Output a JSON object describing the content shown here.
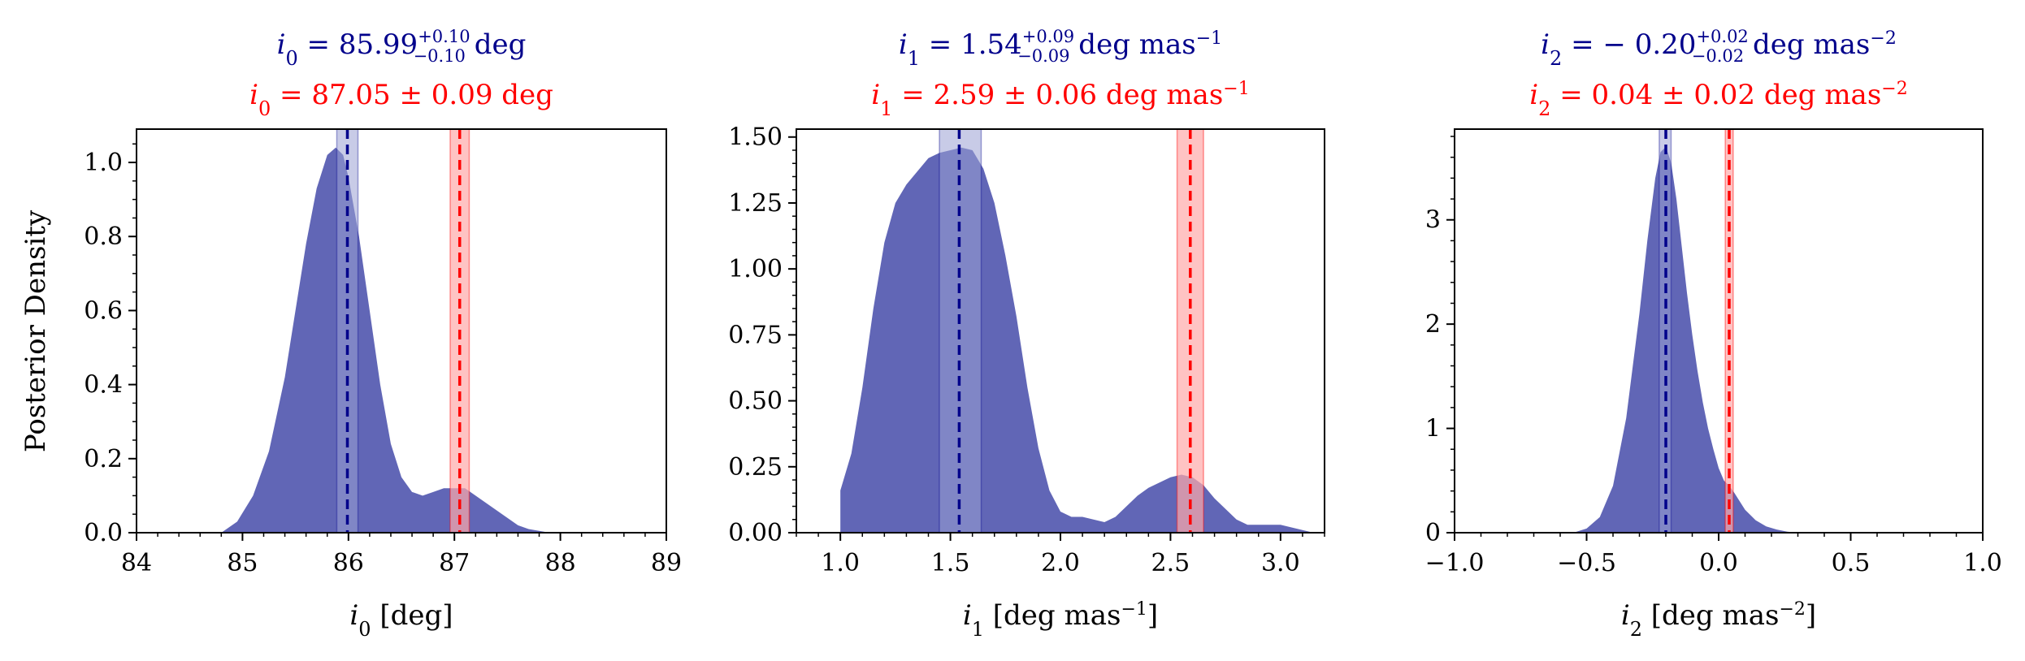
{
  "figure": {
    "ylabel": "Posterior Density",
    "colors": {
      "fill": "#6166b6",
      "blue": "#00008b",
      "blue_band": "#9aa0d4",
      "red": "#ff0000",
      "red_band": "#ffaaaa"
    }
  },
  "chart_data": [
    {
      "type": "area",
      "title_blue": {
        "var": "i",
        "sub": "0",
        "rest": " = 85.99",
        "sup": "+0.10",
        "subv": "−0.10",
        "unit": " deg"
      },
      "title_red": {
        "var": "i",
        "sub": "0",
        "rest": " = 87.05 ± 0.09 deg"
      },
      "xlabel": {
        "var": "i",
        "sub": "0",
        "rest": " [deg]",
        "sup": ""
      },
      "xlim": [
        84,
        89
      ],
      "ylim": [
        0,
        1.09
      ],
      "xticks": [
        84,
        85,
        86,
        87,
        88,
        89
      ],
      "yticks": [
        0.0,
        0.2,
        0.4,
        0.6,
        0.8,
        1.0
      ],
      "xtick_labels": [
        "84",
        "85",
        "86",
        "87",
        "88",
        "89"
      ],
      "ytick_labels": [
        "0.0",
        "0.2",
        "0.4",
        "0.6",
        "0.8",
        "1.0"
      ],
      "x_minor_step": 0.2,
      "y_minor_step": 0.05,
      "blue_fit": {
        "value": 85.99,
        "band": [
          85.89,
          86.09
        ]
      },
      "red_fit": {
        "value": 87.05,
        "band": [
          86.96,
          87.14
        ]
      },
      "series": {
        "x": [
          84.8,
          84.95,
          85.1,
          85.25,
          85.4,
          85.5,
          85.6,
          85.7,
          85.8,
          85.88,
          85.95,
          86.0,
          86.05,
          86.1,
          86.2,
          86.3,
          86.4,
          86.5,
          86.6,
          86.7,
          86.8,
          86.9,
          87.0,
          87.1,
          87.2,
          87.3,
          87.4,
          87.5,
          87.6,
          87.7,
          87.8,
          87.9
        ],
        "y": [
          0.0,
          0.03,
          0.1,
          0.22,
          0.42,
          0.6,
          0.78,
          0.93,
          1.02,
          1.04,
          1.02,
          0.96,
          0.88,
          0.8,
          0.6,
          0.4,
          0.24,
          0.15,
          0.11,
          0.1,
          0.11,
          0.12,
          0.12,
          0.12,
          0.1,
          0.08,
          0.06,
          0.04,
          0.02,
          0.01,
          0.005,
          0.0
        ]
      }
    },
    {
      "type": "area",
      "title_blue": {
        "var": "i",
        "sub": "1",
        "rest": " = 1.54",
        "sup": "+0.09",
        "subv": "−0.09",
        "unit": " deg mas",
        "unit_sup": "−1"
      },
      "title_red": {
        "var": "i",
        "sub": "1",
        "rest": " = 2.59 ± 0.06 deg mas",
        "unit_sup": "−1"
      },
      "xlabel": {
        "var": "i",
        "sub": "1",
        "rest": " [deg mas",
        "sup": "−1",
        "close": "]"
      },
      "xlim": [
        0.8,
        3.2
      ],
      "ylim": [
        0,
        1.53
      ],
      "xticks": [
        1.0,
        1.5,
        2.0,
        2.5,
        3.0
      ],
      "yticks": [
        0.0,
        0.25,
        0.5,
        0.75,
        1.0,
        1.25,
        1.5
      ],
      "xtick_labels": [
        "1.0",
        "1.5",
        "2.0",
        "2.5",
        "3.0"
      ],
      "ytick_labels": [
        "0.00",
        "0.25",
        "0.50",
        "0.75",
        "1.00",
        "1.25",
        "1.50"
      ],
      "x_minor_step": 0.1,
      "y_minor_step": 0.05,
      "blue_fit": {
        "value": 1.54,
        "band": [
          1.45,
          1.64
        ]
      },
      "red_fit": {
        "value": 2.59,
        "band": [
          2.53,
          2.65
        ]
      },
      "series": {
        "x": [
          1.0,
          1.0,
          1.05,
          1.1,
          1.15,
          1.2,
          1.25,
          1.3,
          1.35,
          1.4,
          1.45,
          1.5,
          1.55,
          1.6,
          1.65,
          1.7,
          1.75,
          1.8,
          1.85,
          1.9,
          1.95,
          2.0,
          2.05,
          2.1,
          2.15,
          2.2,
          2.25,
          2.3,
          2.35,
          2.4,
          2.45,
          2.5,
          2.55,
          2.6,
          2.65,
          2.7,
          2.75,
          2.8,
          2.85,
          2.9,
          2.95,
          3.0,
          3.05,
          3.1,
          3.15,
          3.2
        ],
        "y": [
          0.0,
          0.16,
          0.3,
          0.55,
          0.85,
          1.1,
          1.25,
          1.32,
          1.37,
          1.42,
          1.44,
          1.45,
          1.46,
          1.45,
          1.38,
          1.25,
          1.05,
          0.82,
          0.55,
          0.32,
          0.16,
          0.08,
          0.06,
          0.06,
          0.05,
          0.04,
          0.06,
          0.1,
          0.14,
          0.17,
          0.19,
          0.21,
          0.22,
          0.21,
          0.18,
          0.13,
          0.09,
          0.05,
          0.03,
          0.03,
          0.03,
          0.03,
          0.02,
          0.01,
          0.0,
          0.0
        ]
      }
    },
    {
      "type": "area",
      "title_blue": {
        "var": "i",
        "sub": "2",
        "rest": " = − 0.20",
        "sup": "+0.02",
        "subv": "−0.02",
        "unit": " deg mas",
        "unit_sup": "−2"
      },
      "title_red": {
        "var": "i",
        "sub": "2",
        "rest": " = 0.04 ± 0.02 deg mas",
        "unit_sup": "−2"
      },
      "xlabel": {
        "var": "i",
        "sub": "2",
        "rest": " [deg mas",
        "sup": "−2",
        "close": "]"
      },
      "xlim": [
        -1.0,
        1.0
      ],
      "ylim": [
        0,
        3.87
      ],
      "xticks": [
        -1.0,
        -0.5,
        0.0,
        0.5,
        1.0
      ],
      "yticks": [
        0,
        1,
        2,
        3
      ],
      "xtick_labels": [
        "−1.0",
        "−0.5",
        "0.0",
        "0.5",
        "1.0"
      ],
      "ytick_labels": [
        "0",
        "1",
        "2",
        "3"
      ],
      "x_minor_step": 0.1,
      "y_minor_step": 0.2,
      "blue_fit": {
        "value": -0.2,
        "band": [
          -0.225,
          -0.18
        ]
      },
      "red_fit": {
        "value": 0.04,
        "band": [
          0.025,
          0.055
        ]
      },
      "series": {
        "x": [
          -0.55,
          -0.5,
          -0.45,
          -0.4,
          -0.35,
          -0.3,
          -0.27,
          -0.24,
          -0.22,
          -0.2,
          -0.18,
          -0.16,
          -0.14,
          -0.12,
          -0.1,
          -0.08,
          -0.06,
          -0.04,
          -0.02,
          0.0,
          0.02,
          0.04,
          0.06,
          0.08,
          0.1,
          0.14,
          0.18,
          0.22,
          0.26,
          0.3
        ],
        "y": [
          0.0,
          0.04,
          0.15,
          0.45,
          1.1,
          2.1,
          2.8,
          3.4,
          3.65,
          3.7,
          3.55,
          3.2,
          2.75,
          2.3,
          1.9,
          1.55,
          1.25,
          1.0,
          0.8,
          0.62,
          0.5,
          0.45,
          0.38,
          0.3,
          0.22,
          0.12,
          0.06,
          0.03,
          0.01,
          0.0
        ]
      }
    }
  ]
}
